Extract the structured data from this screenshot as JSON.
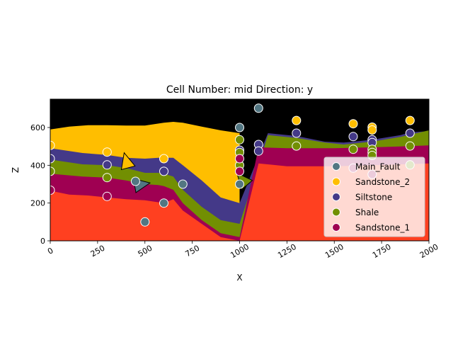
{
  "chart_data": {
    "type": "scatter",
    "title": "Cell Number: mid Direction: y",
    "xlabel": "X",
    "ylabel": "Z",
    "xlim": [
      0,
      2000
    ],
    "ylim": [
      0,
      750
    ],
    "xticks": [
      0,
      250,
      500,
      750,
      1000,
      1250,
      1500,
      1750,
      2000
    ],
    "yticks": [
      0,
      200,
      400,
      600
    ],
    "legend_position": "lower-right",
    "colors": {
      "basement": "#ff4020",
      "top": "#000000",
      "Main_Fault": "#527682",
      "Sandstone_2": "#ffbe00",
      "Siltstone": "#443988",
      "Shale": "#728f02",
      "Sandstone_1": "#9f0052"
    },
    "layers": [
      {
        "name": "Sandstone_1",
        "color": "#9f0052",
        "left_top": [
          [
            0,
            355
          ],
          [
            170,
            340
          ],
          [
            300,
            335
          ],
          [
            400,
            320
          ],
          [
            500,
            300
          ],
          [
            570,
            295
          ],
          [
            600,
            290
          ],
          [
            650,
            270
          ],
          [
            700,
            200
          ],
          [
            800,
            110
          ],
          [
            900,
            40
          ],
          [
            1000,
            20
          ]
        ],
        "left_bottom": [
          [
            0,
            265
          ],
          [
            100,
            245
          ],
          [
            200,
            240
          ],
          [
            300,
            230
          ],
          [
            400,
            220
          ],
          [
            500,
            215
          ],
          [
            600,
            200
          ],
          [
            650,
            220
          ],
          [
            700,
            160
          ],
          [
            800,
            90
          ],
          [
            900,
            20
          ],
          [
            1000,
            0
          ]
        ],
        "right_top": [
          [
            1000,
            500
          ],
          [
            1100,
            495
          ],
          [
            1250,
            490
          ],
          [
            1500,
            490
          ],
          [
            1700,
            495
          ],
          [
            1850,
            500
          ],
          [
            2000,
            505
          ]
        ],
        "right_bottom": [
          [
            1000,
            430
          ],
          [
            1100,
            410
          ],
          [
            1250,
            395
          ],
          [
            1500,
            395
          ],
          [
            1700,
            400
          ],
          [
            1850,
            405
          ],
          [
            2000,
            410
          ]
        ]
      },
      {
        "name": "Shale",
        "color": "#728f02",
        "left_top": [
          [
            0,
            430
          ],
          [
            170,
            405
          ],
          [
            300,
            400
          ],
          [
            400,
            385
          ],
          [
            500,
            360
          ],
          [
            570,
            360
          ],
          [
            600,
            355
          ],
          [
            650,
            340
          ],
          [
            700,
            270
          ],
          [
            800,
            180
          ],
          [
            900,
            110
          ],
          [
            1000,
            90
          ]
        ],
        "right_top": [
          [
            1000,
            570
          ],
          [
            1150,
            560
          ],
          [
            1300,
            545
          ],
          [
            1450,
            520
          ],
          [
            1550,
            510
          ],
          [
            1700,
            525
          ],
          [
            1850,
            550
          ],
          [
            2000,
            585
          ]
        ]
      },
      {
        "name": "Siltstone",
        "color": "#443988",
        "left_top": [
          [
            0,
            490
          ],
          [
            170,
            465
          ],
          [
            300,
            455
          ],
          [
            400,
            440
          ],
          [
            500,
            435
          ],
          [
            570,
            440
          ],
          [
            650,
            440
          ],
          [
            700,
            400
          ],
          [
            800,
            320
          ],
          [
            900,
            230
          ],
          [
            1000,
            200
          ]
        ],
        "right_top": [
          [
            1000,
            575
          ],
          [
            1150,
            570
          ],
          [
            1300,
            555
          ],
          [
            1450,
            525
          ],
          [
            1550,
            520
          ],
          [
            1700,
            535
          ],
          [
            1850,
            560
          ],
          [
            1900,
            575
          ],
          [
            2000,
            580
          ]
        ]
      },
      {
        "name": "Sandstone_2",
        "color": "#ffbe00",
        "left_top": [
          [
            0,
            590
          ],
          [
            100,
            605
          ],
          [
            200,
            612
          ],
          [
            300,
            612
          ],
          [
            400,
            610
          ],
          [
            500,
            610
          ],
          [
            600,
            625
          ],
          [
            650,
            630
          ],
          [
            700,
            625
          ],
          [
            800,
            605
          ],
          [
            900,
            585
          ],
          [
            1000,
            570
          ]
        ]
      }
    ],
    "series": [
      {
        "name": "Main_Fault",
        "color": "#527682",
        "points": [
          [
            1100,
            702
          ],
          [
            1000,
            600
          ],
          [
            1000,
            300
          ],
          [
            450,
            315
          ],
          [
            500,
            100
          ],
          [
            600,
            200
          ],
          [
            700,
            300
          ]
        ]
      },
      {
        "name": "Sandstone_2",
        "color": "#ffbe00",
        "points": [
          [
            0,
            505
          ],
          [
            300,
            470
          ],
          [
            600,
            435
          ],
          [
            1300,
            637
          ],
          [
            1600,
            620
          ],
          [
            1700,
            602
          ],
          [
            1700,
            587
          ],
          [
            1900,
            637
          ]
        ]
      },
      {
        "name": "Siltstone",
        "color": "#443988",
        "points": [
          [
            0,
            435
          ],
          [
            300,
            402
          ],
          [
            600,
            368
          ],
          [
            1000,
            480
          ],
          [
            1100,
            510
          ],
          [
            1100,
            475
          ],
          [
            1300,
            570
          ],
          [
            1600,
            552
          ],
          [
            1700,
            535
          ],
          [
            1700,
            520
          ],
          [
            1900,
            570
          ]
        ]
      },
      {
        "name": "Shale",
        "color": "#728f02",
        "points": [
          [
            0,
            368
          ],
          [
            300,
            335
          ],
          [
            1000,
            535
          ],
          [
            1000,
            468
          ],
          [
            1000,
            400
          ],
          [
            1300,
            502
          ],
          [
            1600,
            485
          ],
          [
            1700,
            485
          ],
          [
            1700,
            468
          ],
          [
            1700,
            452
          ],
          [
            1900,
            502
          ],
          [
            1900,
            402
          ]
        ]
      },
      {
        "name": "Sandstone_1",
        "color": "#9f0052",
        "points": [
          [
            0,
            268
          ],
          [
            300,
            235
          ],
          [
            1000,
            435
          ],
          [
            1000,
            368
          ],
          [
            1600,
            385
          ],
          [
            1700,
            352
          ]
        ]
      }
    ],
    "orientations": [
      {
        "x": 400,
        "z": 430,
        "color": "#ffbe00",
        "angle": -15
      },
      {
        "x": 490,
        "z": 300,
        "color": "#527682",
        "angle": 80
      },
      {
        "x": 1010,
        "z": 330,
        "color": "#728f02",
        "angle": -40
      }
    ]
  }
}
